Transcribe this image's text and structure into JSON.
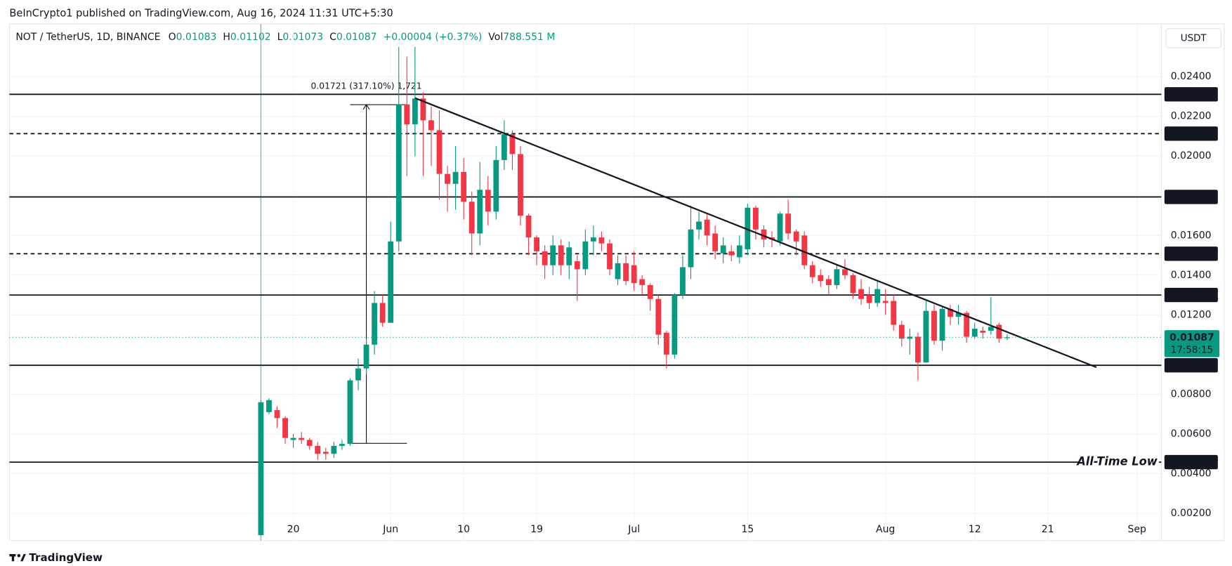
{
  "header": "BeInCrypto1 published on TradingView.com, Aug 16, 2024 11:31 UTC+5:30",
  "brand": "TradingView",
  "chart_data": {
    "type": "candlestick",
    "title": "NOT / TetherUS, 1D, BINANCE",
    "legend": {
      "open_key": "O",
      "high_key": "H",
      "low_key": "L",
      "close_key": "C",
      "change": "+0.00004 (+0.37%)",
      "volume_key": "Vol",
      "volume": "788.551 M"
    },
    "currency": "USDT",
    "up_color": "#089981",
    "down_color": "#f23645",
    "x": [
      "05-16",
      "05-17",
      "05-18",
      "05-19",
      "05-20",
      "05-21",
      "05-22",
      "05-23",
      "05-24",
      "05-25",
      "05-26",
      "05-27",
      "05-28",
      "05-29",
      "05-30",
      "05-31",
      "06-01",
      "06-02",
      "06-03",
      "06-04",
      "06-05",
      "06-06",
      "06-07",
      "06-08",
      "06-09",
      "06-10",
      "06-11",
      "06-12",
      "06-13",
      "06-14",
      "06-15",
      "06-16",
      "06-17",
      "06-18",
      "06-19",
      "06-20",
      "06-21",
      "06-22",
      "06-23",
      "06-24",
      "06-25",
      "06-26",
      "06-27",
      "06-28",
      "06-29",
      "06-30",
      "07-01",
      "07-02",
      "07-03",
      "07-04",
      "07-05",
      "07-06",
      "07-07",
      "07-08",
      "07-09",
      "07-10",
      "07-11",
      "07-12",
      "07-13",
      "07-14",
      "07-15",
      "07-16",
      "07-17",
      "07-18",
      "07-19",
      "07-20",
      "07-21",
      "07-22",
      "07-23",
      "07-24",
      "07-25",
      "07-26",
      "07-27",
      "07-28",
      "07-29",
      "07-30",
      "07-31",
      "08-01",
      "08-02",
      "08-03",
      "08-04",
      "08-05",
      "08-06",
      "08-07",
      "08-08",
      "08-09",
      "08-10",
      "08-11",
      "08-12",
      "08-13",
      "08-14",
      "08-15",
      "08-16"
    ],
    "open": [
      0.0009,
      0.0071,
      0.0072,
      0.0068,
      0.0057,
      0.0058,
      0.0057,
      0.0054,
      0.0051,
      0.005,
      0.0054,
      0.0055,
      0.0087,
      0.0093,
      0.0105,
      0.0126,
      0.0116,
      0.0157,
      0.0226,
      0.0216,
      0.0229,
      0.0218,
      0.0213,
      0.0191,
      0.0186,
      0.0192,
      0.0177,
      0.0161,
      0.0183,
      0.0172,
      0.0198,
      0.0211,
      0.0201,
      0.017,
      0.0159,
      0.0152,
      0.0145,
      0.0155,
      0.0145,
      0.0147,
      0.0143,
      0.0157,
      0.0159,
      0.0156,
      0.0138,
      0.0146,
      0.0145,
      0.0138,
      0.0135,
      0.0128,
      0.0111,
      0.01,
      0.013,
      0.0144,
      0.0163,
      0.0168,
      0.0161,
      0.0151,
      0.0152,
      0.0149,
      0.0153,
      0.0174,
      0.0163,
      0.0159,
      0.0157,
      0.0171,
      0.0162,
      0.016,
      0.0145,
      0.014,
      0.0138,
      0.0135,
      0.0143,
      0.014,
      0.0133,
      0.013,
      0.0126,
      0.0127,
      0.0127,
      0.0115,
      0.0108,
      0.0109,
      0.0096,
      0.0122,
      0.0107,
      0.0123,
      0.0119,
      0.0121,
      0.0109,
      0.0112,
      0.0112,
      0.0115,
      0.01083
    ],
    "high": [
      0.0077,
      0.0078,
      0.0074,
      0.0069,
      0.006,
      0.0061,
      0.0058,
      0.0056,
      0.0053,
      0.0056,
      0.0057,
      0.0088,
      0.0098,
      0.0108,
      0.0132,
      0.013,
      0.0167,
      0.0255,
      0.025,
      0.0255,
      0.0232,
      0.0225,
      0.0223,
      0.0195,
      0.0205,
      0.0199,
      0.0182,
      0.0197,
      0.019,
      0.0205,
      0.0218,
      0.0213,
      0.0205,
      0.0171,
      0.016,
      0.0155,
      0.016,
      0.0158,
      0.0157,
      0.015,
      0.0163,
      0.0165,
      0.0162,
      0.0158,
      0.015,
      0.015,
      0.0152,
      0.014,
      0.0136,
      0.013,
      0.0112,
      0.0131,
      0.015,
      0.0175,
      0.0172,
      0.0171,
      0.0165,
      0.0159,
      0.0155,
      0.016,
      0.0176,
      0.0175,
      0.0165,
      0.0162,
      0.0172,
      0.0178,
      0.0163,
      0.0162,
      0.0147,
      0.0143,
      0.014,
      0.0145,
      0.0148,
      0.0141,
      0.0138,
      0.0134,
      0.0137,
      0.0133,
      0.013,
      0.0117,
      0.0113,
      0.0111,
      0.0127,
      0.0125,
      0.0124,
      0.0125,
      0.0125,
      0.0122,
      0.0116,
      0.0114,
      0.0129,
      0.0116,
      0.01102
    ],
    "low": [
      0.0009,
      0.007,
      0.0063,
      0.0055,
      0.0053,
      0.0055,
      0.0052,
      0.0047,
      0.0047,
      0.0048,
      0.0052,
      0.0054,
      0.0082,
      0.009,
      0.01,
      0.0114,
      0.0116,
      0.0152,
      0.019,
      0.02,
      0.019,
      0.0195,
      0.0178,
      0.0172,
      0.0173,
      0.0168,
      0.015,
      0.0155,
      0.0165,
      0.0168,
      0.0193,
      0.0193,
      0.0165,
      0.015,
      0.0145,
      0.0138,
      0.014,
      0.014,
      0.0138,
      0.0127,
      0.014,
      0.015,
      0.0152,
      0.014,
      0.0135,
      0.0135,
      0.0132,
      0.013,
      0.0122,
      0.0105,
      0.0093,
      0.0098,
      0.0128,
      0.0138,
      0.0158,
      0.0155,
      0.0148,
      0.0146,
      0.0147,
      0.0146,
      0.015,
      0.0158,
      0.0154,
      0.0154,
      0.0155,
      0.0158,
      0.015,
      0.0143,
      0.0136,
      0.0134,
      0.013,
      0.0133,
      0.0138,
      0.0128,
      0.0125,
      0.0123,
      0.0124,
      0.012,
      0.0112,
      0.0104,
      0.01,
      0.0087,
      0.0096,
      0.0105,
      0.0102,
      0.0115,
      0.0115,
      0.0106,
      0.0108,
      0.0108,
      0.011,
      0.0106,
      0.01073
    ],
    "close": [
      0.0076,
      0.0077,
      0.0068,
      0.0058,
      0.0058,
      0.0057,
      0.0054,
      0.005,
      0.005,
      0.0054,
      0.0055,
      0.0087,
      0.0093,
      0.0105,
      0.0126,
      0.0116,
      0.0157,
      0.0226,
      0.0216,
      0.0229,
      0.0218,
      0.0213,
      0.0191,
      0.0186,
      0.0192,
      0.0177,
      0.0161,
      0.0183,
      0.0172,
      0.0198,
      0.0211,
      0.0201,
      0.017,
      0.0159,
      0.0152,
      0.0145,
      0.0155,
      0.0145,
      0.0154,
      0.0143,
      0.0157,
      0.0159,
      0.0156,
      0.0143,
      0.0146,
      0.0137,
      0.0136,
      0.0135,
      0.0128,
      0.011,
      0.01,
      0.013,
      0.0144,
      0.0163,
      0.0167,
      0.016,
      0.0152,
      0.0155,
      0.015,
      0.0155,
      0.0174,
      0.0163,
      0.0158,
      0.0158,
      0.0171,
      0.0161,
      0.0157,
      0.0145,
      0.0139,
      0.0137,
      0.0135,
      0.0143,
      0.014,
      0.0131,
      0.0128,
      0.0126,
      0.0133,
      0.0126,
      0.0115,
      0.0108,
      0.0109,
      0.0096,
      0.0122,
      0.0107,
      0.0123,
      0.0119,
      0.0121,
      0.0109,
      0.0113,
      0.0111,
      0.0114,
      0.0108,
      0.01087
    ],
    "xlim": [
      "04-15",
      "09-04"
    ],
    "xticks": [
      {
        "value": "05-20",
        "label": "20"
      },
      {
        "value": "06-01",
        "label": "Jun"
      },
      {
        "value": "06-10",
        "label": "10"
      },
      {
        "value": "06-19",
        "label": "19"
      },
      {
        "value": "07-01",
        "label": "Jul"
      },
      {
        "value": "07-15",
        "label": "15"
      },
      {
        "value": "08-01",
        "label": "Aug"
      },
      {
        "value": "08-12",
        "label": "12"
      },
      {
        "value": "08-21",
        "label": "21"
      },
      {
        "value": "09-01",
        "label": "Sep"
      }
    ],
    "ylim": [
      0.00063,
      0.02666
    ],
    "yticks": [
      {
        "value": 0.002,
        "label": "0.00200"
      },
      {
        "value": 0.004,
        "label": "0.00400"
      },
      {
        "value": 0.006,
        "label": "0.00600"
      },
      {
        "value": 0.008,
        "label": "0.00800"
      },
      {
        "value": 0.012,
        "label": "0.01200"
      },
      {
        "value": 0.014,
        "label": "0.01400"
      },
      {
        "value": 0.016,
        "label": "0.01600"
      },
      {
        "value": 0.02,
        "label": "0.02000"
      },
      {
        "value": 0.022,
        "label": "0.02200"
      },
      {
        "value": 0.024,
        "label": "0.02400"
      }
    ],
    "grid": true,
    "levels": [
      {
        "value": 0.02311,
        "label": "0.02311",
        "style": "solid"
      },
      {
        "value": 0.02113,
        "label": "0.02113",
        "style": "dashed"
      },
      {
        "value": 0.01794,
        "label": "0.01794",
        "style": "solid"
      },
      {
        "value": 0.01508,
        "label": "0.01508",
        "style": "dashed"
      },
      {
        "value": 0.013,
        "label": "0.01300",
        "style": "solid"
      },
      {
        "value": 0.00946,
        "label": "0.00946",
        "style": "solid"
      },
      {
        "value": 0.00458,
        "label": "0.00458",
        "style": "solid",
        "note": "All-Time Low"
      }
    ],
    "countdown": "17:58:15",
    "trendline": {
      "start": {
        "x": "06-04",
        "y": 0.02292
      },
      "end": {
        "x": "08-27",
        "y": 0.00936
      }
    },
    "measure": {
      "label": "0.01721 (317.10%) 1,721",
      "x": "05-29",
      "x_start": "05-27",
      "x_end": "06-03",
      "from": 0.00553,
      "to": 0.02259
    }
  }
}
